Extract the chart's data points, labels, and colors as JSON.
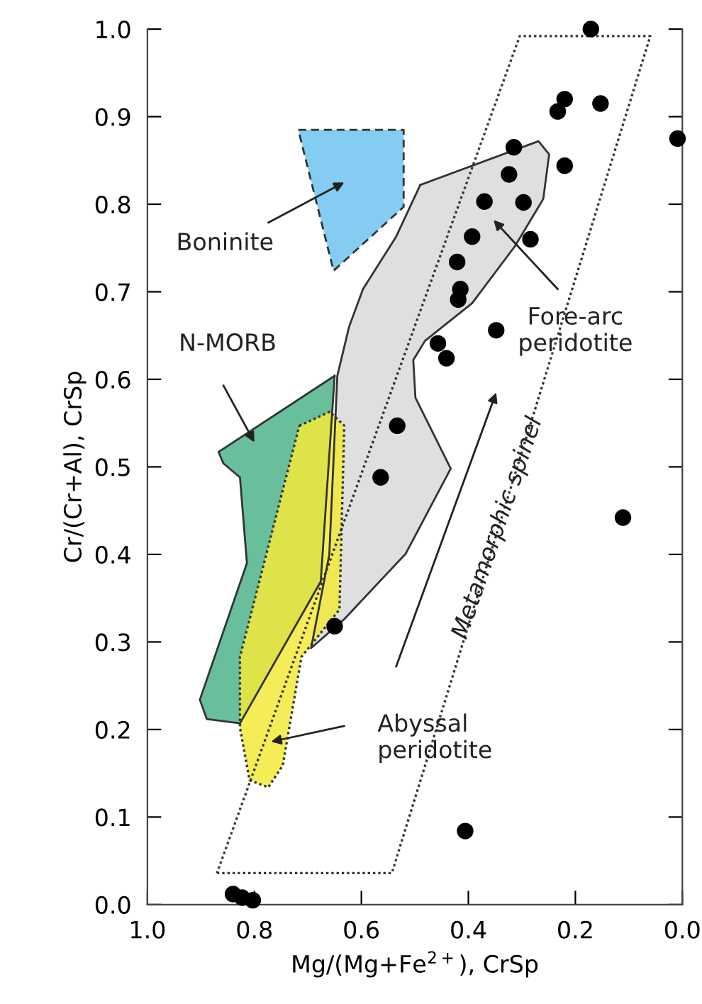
{
  "chart_data": {
    "type": "scatter",
    "xlabel": "Mg/(Mg+Fe$^{2+}$), CrSp",
    "ylabel": "Cr/(Cr+Al), CrSp",
    "xlim": [
      1.0,
      0.0
    ],
    "ylim": [
      0.0,
      1.0
    ],
    "xticks": [
      {
        "value": 1.0,
        "label": "1.0"
      },
      {
        "value": 0.8,
        "label": "0.8"
      },
      {
        "value": 0.6,
        "label": "0.6"
      },
      {
        "value": 0.4,
        "label": "0.4"
      },
      {
        "value": 0.2,
        "label": "0.2"
      },
      {
        "value": 0.0,
        "label": "0.0"
      }
    ],
    "yticks": [
      {
        "value": 0.0,
        "label": "0.0"
      },
      0.1,
      0.2,
      0.3,
      0.4,
      0.5,
      0.6,
      0.7,
      0.8,
      0.9,
      {
        "value": 1.0,
        "label": "1.0"
      }
    ],
    "grid": false,
    "legend": false,
    "series": [
      {
        "type": "area",
        "color": "#ffffff",
        "line_style": "dotted",
        "x": [
          0.87,
          0.543,
          0.06,
          0.304,
          0.87
        ],
        "values": [
          0.036,
          0.036,
          0.992,
          0.992,
          0.036
        ]
      },
      {
        "type": "area",
        "color": "#6ec3ee",
        "line_style": "dashed",
        "x": [
          0.718,
          0.521,
          0.521,
          0.652,
          0.718
        ],
        "values": [
          0.885,
          0.885,
          0.797,
          0.724,
          0.885
        ]
      },
      {
        "type": "area",
        "color": "#d9d9d9",
        "line_style": "solid",
        "x": [
          0.49,
          0.269,
          0.249,
          0.26,
          0.313,
          0.393,
          0.481,
          0.503,
          0.499,
          0.433,
          0.517,
          0.632,
          0.694,
          0.66,
          0.645,
          0.623,
          0.597,
          0.535,
          0.49
        ],
        "values": [
          0.822,
          0.872,
          0.857,
          0.806,
          0.752,
          0.687,
          0.644,
          0.622,
          0.579,
          0.498,
          0.401,
          0.326,
          0.293,
          0.4,
          0.604,
          0.66,
          0.703,
          0.763,
          0.822
        ]
      },
      {
        "type": "area",
        "color": "#4fb38a",
        "line_style": "solid",
        "x": [
          0.65,
          0.867,
          0.858,
          0.827,
          0.814,
          0.902,
          0.889,
          0.827,
          0.676,
          0.65
        ],
        "values": [
          0.604,
          0.517,
          0.504,
          0.488,
          0.39,
          0.234,
          0.212,
          0.207,
          0.369,
          0.604
        ]
      },
      {
        "type": "area",
        "color": "#f2ea3a",
        "line_style": "dotted",
        "x": [
          0.716,
          0.659,
          0.632,
          0.641,
          0.712,
          0.747,
          0.774,
          0.809,
          0.827,
          0.827,
          0.716
        ],
        "values": [
          0.547,
          0.563,
          0.547,
          0.337,
          0.283,
          0.159,
          0.134,
          0.142,
          0.202,
          0.283,
          0.547
        ]
      },
      {
        "marker": "circle",
        "color": "#000000",
        "x": [
          0.171,
          0.22,
          0.233,
          0.153,
          0.009,
          0.315,
          0.22,
          0.324,
          0.37,
          0.297,
          0.393,
          0.284,
          0.421,
          0.415,
          0.419,
          0.348,
          0.457,
          0.441,
          0.533,
          0.564,
          0.111,
          0.65,
          0.406,
          0.84,
          0.823,
          0.803
        ],
        "values": [
          1.0,
          0.92,
          0.906,
          0.915,
          0.875,
          0.865,
          0.844,
          0.834,
          0.803,
          0.802,
          0.763,
          0.76,
          0.734,
          0.703,
          0.691,
          0.656,
          0.641,
          0.624,
          0.547,
          0.488,
          0.442,
          0.318,
          0.084,
          0.012,
          0.008,
          0.005
        ]
      }
    ],
    "annotations": [
      "Boninite",
      "Fore-arc\nperidotite",
      "N-MORB",
      "Abyssal\nperidotite",
      "Metamorphic spinel"
    ]
  }
}
